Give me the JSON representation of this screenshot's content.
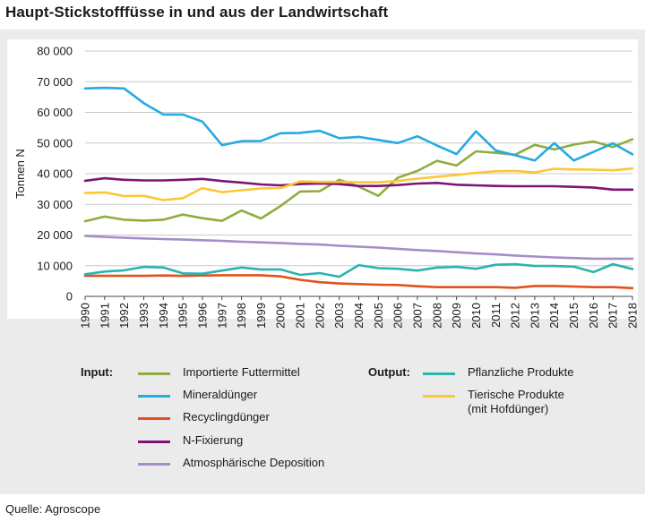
{
  "title": "Haupt-Stickstofffüsse in und aus der Landwirtschaft",
  "source": "Quelle: Agroscope",
  "legend": {
    "input_heading": "Input:",
    "output_heading": "Output:",
    "items": {
      "importierte": "Importierte Futtermittel",
      "mineral": "Mineraldünger",
      "recycling": "Recyclingdünger",
      "nfix": "N-Fixierung",
      "atmos": "Atmosphärische Deposition",
      "pflanz": "Pflanzliche Produkte",
      "tierisch_line1": "Tierische Produkte",
      "tierisch_line2": "(mit Hofdünger)"
    }
  },
  "chart_data": {
    "type": "line",
    "title": "Haupt-Stickstofffüsse in und aus der Landwirtschaft",
    "xlabel": "",
    "ylabel": "Tonnen N",
    "ylim": [
      0,
      80000
    ],
    "yticks": [
      0,
      10000,
      20000,
      30000,
      40000,
      50000,
      60000,
      70000,
      80000
    ],
    "ytick_labels": [
      "0",
      "10 000",
      "20 000",
      "30 000",
      "40 000",
      "50 000",
      "60 000",
      "70 000",
      "80 000"
    ],
    "x": [
      1990,
      1991,
      1992,
      1993,
      1994,
      1995,
      1996,
      1997,
      1998,
      1999,
      2000,
      2001,
      2002,
      2003,
      2004,
      2005,
      2006,
      2007,
      2008,
      2009,
      2010,
      2011,
      2012,
      2013,
      2014,
      2015,
      2016,
      2017,
      2018
    ],
    "series": [
      {
        "key": "importierte",
        "name": "Importierte Futtermittel",
        "group": "input",
        "color": "#8ead3e",
        "values": [
          24500,
          26000,
          25000,
          24700,
          25000,
          26700,
          25500,
          24600,
          28000,
          25400,
          29500,
          34200,
          34300,
          38000,
          35800,
          32800,
          38700,
          40900,
          44200,
          42700,
          47300,
          46800,
          46200,
          49400,
          47900,
          49500,
          50500,
          48700,
          51200
        ]
      },
      {
        "key": "mineral",
        "name": "Mineraldünger",
        "group": "input",
        "color": "#25aae1",
        "values": [
          67800,
          68000,
          67800,
          63000,
          59300,
          59300,
          57000,
          49300,
          50600,
          50700,
          53200,
          53300,
          54000,
          51600,
          52000,
          51000,
          50000,
          52200,
          49200,
          46400,
          53800,
          47600,
          46000,
          44300,
          50000,
          44300,
          47100,
          49900,
          46300
        ]
      },
      {
        "key": "recycling",
        "name": "Recyclingdünger",
        "group": "input",
        "color": "#e2511c",
        "values": [
          6700,
          6700,
          6700,
          6700,
          6800,
          6700,
          6800,
          6900,
          6900,
          6900,
          6500,
          5400,
          4600,
          4200,
          4000,
          3800,
          3700,
          3300,
          3000,
          3000,
          3000,
          3000,
          2800,
          3400,
          3400,
          3200,
          3000,
          3000,
          2700
        ]
      },
      {
        "key": "nfix",
        "name": "N-Fixierung",
        "group": "input",
        "color": "#7d1474",
        "values": [
          37700,
          38500,
          38000,
          37800,
          37800,
          38000,
          38300,
          37600,
          37100,
          36500,
          36200,
          36600,
          36800,
          36600,
          36000,
          36000,
          36300,
          36800,
          37000,
          36400,
          36200,
          36000,
          35900,
          35900,
          35900,
          35700,
          35500,
          34800,
          34800
        ]
      },
      {
        "key": "atmos",
        "name": "Atmosphärische Deposition",
        "group": "input",
        "color": "#a58dc7",
        "values": [
          19700,
          19400,
          19100,
          18900,
          18700,
          18500,
          18300,
          18100,
          17800,
          17600,
          17400,
          17100,
          16900,
          16500,
          16200,
          15900,
          15500,
          15100,
          14800,
          14400,
          14000,
          13700,
          13300,
          13000,
          12700,
          12500,
          12300,
          12300,
          12300
        ]
      },
      {
        "key": "pflanz",
        "name": "Pflanzliche Produkte",
        "group": "output",
        "color": "#2ab4ae",
        "values": [
          7200,
          8100,
          8500,
          9600,
          9400,
          7500,
          7400,
          8400,
          9400,
          8800,
          8800,
          7000,
          7600,
          6400,
          10200,
          9200,
          9000,
          8400,
          9400,
          9600,
          9000,
          10300,
          10500,
          9900,
          9900,
          9700,
          7900,
          10500,
          8900
        ]
      },
      {
        "key": "tierisch",
        "name": "Tierische Produkte (mit Hofdünger)",
        "group": "output",
        "color": "#fbc734",
        "values": [
          33700,
          33900,
          32700,
          32800,
          31400,
          32000,
          35300,
          34000,
          34600,
          35200,
          35300,
          37500,
          37300,
          37300,
          37200,
          37200,
          37600,
          38400,
          39000,
          39600,
          40300,
          40800,
          40900,
          40400,
          41600,
          41400,
          41300,
          41100,
          41700
        ]
      }
    ]
  }
}
